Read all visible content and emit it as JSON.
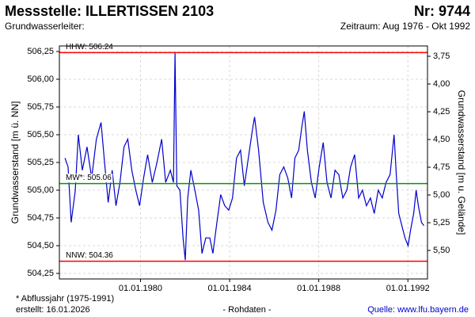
{
  "chart_data": {
    "type": "line",
    "title": "Messstelle: ILLERTISSEN 2103",
    "title_right": "Nr: 9744",
    "subtitle_left": "Grundwasserleiter:",
    "subtitle_right": "Zeitraum: Aug 1976 - Okt 1992",
    "ylabel": "Grundwasserstand [m ü. NN]",
    "y2label": "Grundwasserstand [m u. Gelände]",
    "footnote": "* Abflussjahr (1975-1991)",
    "created": "erstellt:  16.01.2026",
    "note": "- Rohdaten -",
    "source": "Quelle: www.lfu.bayern.de",
    "color": "#0000cc",
    "grid": true,
    "xlim": [
      1976.36,
      1992.88
    ],
    "xticks": [
      {
        "value": 1980,
        "label": "01.01.1980"
      },
      {
        "value": 1984,
        "label": "01.01.1984"
      },
      {
        "value": 1988,
        "label": "01.01.1988"
      },
      {
        "value": 1992,
        "label": "01.01.1992"
      }
    ],
    "ylim": [
      504.2,
      506.3
    ],
    "yticks": [
      {
        "value": 504.25,
        "label": "504,25"
      },
      {
        "value": 504.5,
        "label": "504,50"
      },
      {
        "value": 504.75,
        "label": "504,75"
      },
      {
        "value": 505,
        "label": "505,00"
      },
      {
        "value": 505.25,
        "label": "505,25"
      },
      {
        "value": 505.5,
        "label": "505,50"
      },
      {
        "value": 505.75,
        "label": "505,75"
      },
      {
        "value": 506,
        "label": "506,00"
      },
      {
        "value": 506.25,
        "label": "506,25"
      }
    ],
    "y2lim": [
      5.757,
      3.657
    ],
    "y2ticks": [
      {
        "value": 3.75,
        "label": "3,75"
      },
      {
        "value": 4,
        "label": "4,00"
      },
      {
        "value": 4.25,
        "label": "4,25"
      },
      {
        "value": 4.5,
        "label": "4,50"
      },
      {
        "value": 4.75,
        "label": "4,75"
      },
      {
        "value": 5,
        "label": "5,00"
      },
      {
        "value": 5.25,
        "label": "5,25"
      },
      {
        "value": 5.5,
        "label": "5,50"
      }
    ],
    "reference_lines": [
      {
        "label": "HHW: 506.24",
        "value": 506.24,
        "color": "#ff0000"
      },
      {
        "label": "MW*: 505.06",
        "value": 505.06,
        "color": "#009900"
      },
      {
        "label": "NNW: 504.36",
        "value": 504.36,
        "color": "#ff0000"
      }
    ],
    "x": [
      1976.61,
      1976.75,
      1976.89,
      1977.07,
      1977.21,
      1977.39,
      1977.6,
      1977.81,
      1978.02,
      1978.23,
      1978.37,
      1978.55,
      1978.73,
      1978.9,
      1979.08,
      1979.26,
      1979.43,
      1979.61,
      1979.79,
      1979.96,
      1980.14,
      1980.32,
      1980.53,
      1980.74,
      1980.95,
      1981.13,
      1981.34,
      1981.48,
      1981.55,
      1981.63,
      1981.77,
      1981.91,
      1982.01,
      1982.12,
      1982.26,
      1982.44,
      1982.61,
      1982.76,
      1982.93,
      1983.11,
      1983.25,
      1983.43,
      1983.6,
      1983.78,
      1983.96,
      1984.13,
      1984.31,
      1984.49,
      1984.66,
      1984.84,
      1985.02,
      1985.12,
      1985.3,
      1985.51,
      1985.72,
      1985.9,
      1986.08,
      1986.25,
      1986.43,
      1986.61,
      1986.78,
      1986.93,
      1987.1,
      1987.24,
      1987.35,
      1987.49,
      1987.67,
      1987.84,
      1988.02,
      1988.2,
      1988.37,
      1988.55,
      1988.73,
      1988.9,
      1989.08,
      1989.26,
      1989.43,
      1989.61,
      1989.79,
      1989.96,
      1990.14,
      1990.32,
      1990.49,
      1990.67,
      1990.85,
      1991.02,
      1991.2,
      1991.38,
      1991.48,
      1991.59,
      1991.73,
      1991.87,
      1992.01,
      1992.12,
      1992.26,
      1992.37,
      1992.47,
      1992.61,
      1992.72
    ],
    "values": [
      505.29,
      505.21,
      504.71,
      504.99,
      505.5,
      505.18,
      505.39,
      505.11,
      505.46,
      505.61,
      505.29,
      504.89,
      505.18,
      504.86,
      505.07,
      505.39,
      505.46,
      505.18,
      505.0,
      504.86,
      505.11,
      505.32,
      505.07,
      505.25,
      505.46,
      505.07,
      505.18,
      505.07,
      506.24,
      505.04,
      505.0,
      504.57,
      504.37,
      504.93,
      505.18,
      505.0,
      504.82,
      504.43,
      504.57,
      504.57,
      504.43,
      504.71,
      504.96,
      504.86,
      504.82,
      504.93,
      505.29,
      505.36,
      505.04,
      505.29,
      505.54,
      505.66,
      505.36,
      504.89,
      504.71,
      504.64,
      504.82,
      505.14,
      505.21,
      505.11,
      504.93,
      505.29,
      505.36,
      505.57,
      505.71,
      505.36,
      505.07,
      504.93,
      505.21,
      505.43,
      505.07,
      504.93,
      505.18,
      505.14,
      504.93,
      505.0,
      505.21,
      505.32,
      504.93,
      505.0,
      504.86,
      504.93,
      504.79,
      505.0,
      504.93,
      505.07,
      505.14,
      505.5,
      505.14,
      504.79,
      504.68,
      504.57,
      504.5,
      504.64,
      504.79,
      505.0,
      504.86,
      504.71,
      504.68
    ]
  }
}
